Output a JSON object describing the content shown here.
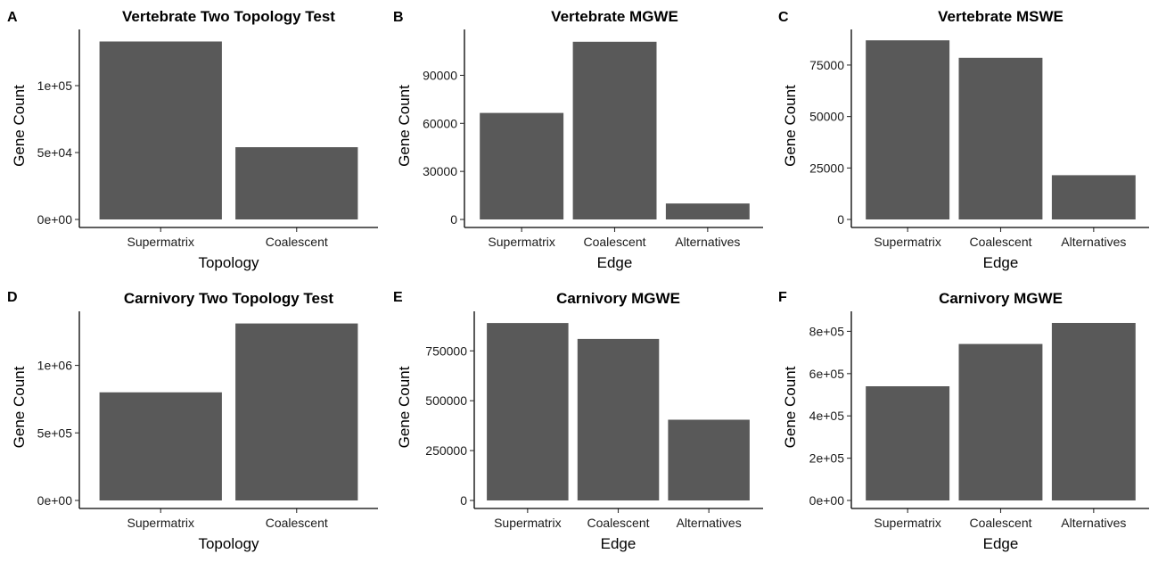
{
  "chart_data": [
    {
      "type": "bar",
      "panel_label": "A",
      "title": "Vertebrate Two Topology Test",
      "xlabel": "Topology",
      "ylabel": "Gene Count",
      "categories": [
        "Supermatrix",
        "Coalescent"
      ],
      "values": [
        133000,
        54000
      ],
      "ylim": [
        0,
        140000
      ],
      "yticks": [
        0,
        50000,
        100000
      ],
      "ytick_labels": [
        "0e+00",
        "5e+04",
        "1e+05"
      ],
      "bar_color": "#595959",
      "grid": false
    },
    {
      "type": "bar",
      "panel_label": "B",
      "title": "Vertebrate MGWE",
      "xlabel": "Edge",
      "ylabel": "Gene Count",
      "categories": [
        "Supermatrix",
        "Coalescent",
        "Alternatives"
      ],
      "values": [
        66500,
        111000,
        10000
      ],
      "ylim": [
        0,
        117000
      ],
      "yticks": [
        0,
        30000,
        60000,
        90000
      ],
      "ytick_labels": [
        "0",
        "30000",
        "60000",
        "90000"
      ],
      "bar_color": "#595959",
      "grid": false
    },
    {
      "type": "bar",
      "panel_label": "C",
      "title": "Vertebrate MSWE",
      "xlabel": "Edge",
      "ylabel": "Gene Count",
      "categories": [
        "Supermatrix",
        "Coalescent",
        "Alternatives"
      ],
      "values": [
        87000,
        78500,
        21500
      ],
      "ylim": [
        0,
        91000
      ],
      "yticks": [
        0,
        25000,
        50000,
        75000
      ],
      "ytick_labels": [
        "0",
        "25000",
        "50000",
        "75000"
      ],
      "bar_color": "#595959",
      "grid": false
    },
    {
      "type": "bar",
      "panel_label": "D",
      "title": "Carnivory Two Topology Test",
      "xlabel": "Topology",
      "ylabel": "Gene Count",
      "categories": [
        "Supermatrix",
        "Coalescent"
      ],
      "values": [
        800000,
        1310000
      ],
      "ylim": [
        0,
        1380000
      ],
      "yticks": [
        0,
        500000,
        1000000
      ],
      "ytick_labels": [
        "0e+00",
        "5e+05",
        "1e+06"
      ],
      "bar_color": "#595959",
      "grid": false
    },
    {
      "type": "bar",
      "panel_label": "E",
      "title": "Carnivory MGWE",
      "xlabel": "Edge",
      "ylabel": "Gene Count",
      "categories": [
        "Supermatrix",
        "Coalescent",
        "Alternatives"
      ],
      "values": [
        890000,
        810000,
        405000
      ],
      "ylim": [
        0,
        935000
      ],
      "yticks": [
        0,
        250000,
        500000,
        750000
      ],
      "ytick_labels": [
        "0",
        "250000",
        "500000",
        "750000"
      ],
      "bar_color": "#595959",
      "grid": false
    },
    {
      "type": "bar",
      "panel_label": "F",
      "title": "Carnivory MGWE",
      "xlabel": "Edge",
      "ylabel": "Gene Count",
      "categories": [
        "Supermatrix",
        "Coalescent",
        "Alternatives"
      ],
      "values": [
        540000,
        740000,
        840000
      ],
      "ylim": [
        0,
        882000
      ],
      "yticks": [
        0,
        200000,
        400000,
        600000,
        800000
      ],
      "ytick_labels": [
        "0e+00",
        "2e+05",
        "4e+05",
        "6e+05",
        "8e+05"
      ],
      "bar_color": "#595959",
      "grid": false
    }
  ]
}
